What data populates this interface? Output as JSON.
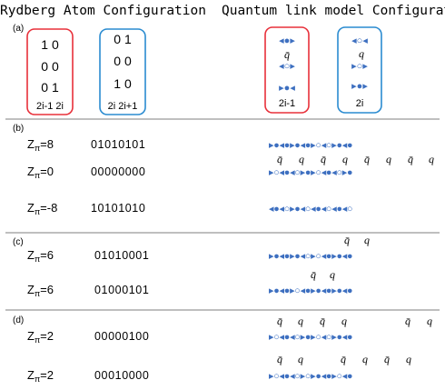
{
  "headers": {
    "rydberg": "Rydberg Atom Configuration",
    "qlm": "Quantum link model Configuration"
  },
  "colors": {
    "red_box": "#e8303a",
    "blue_box": "#2a8bd0",
    "marker": "#3d6fc0",
    "rule": "#555555"
  },
  "panel_a": {
    "label": "(a)",
    "red_box": {
      "rows": [
        "1 0",
        "0 0",
        "0 1"
      ],
      "caption": "2i-1 2i"
    },
    "blue_box": {
      "rows": [
        "0 1",
        "0 0",
        "1 0"
      ],
      "caption": "2i 2i+1"
    },
    "qlm_red": {
      "rows": [
        "◂●▸",
        "◂○▸",
        "▸●◂"
      ],
      "charge": "q̄",
      "caption": "2i-1"
    },
    "qlm_blue": {
      "rows": [
        "◂○◂",
        "▸○▸",
        "▸●▸"
      ],
      "charge": "q",
      "caption": "2i"
    }
  },
  "panel_b": {
    "label": "(b)",
    "rows": [
      {
        "z": "Z",
        "sub": "π",
        "val": "=8",
        "config": "01010101",
        "glyphs": "▸●◂●▸●◂●▸○◂○▸●◂●",
        "charges": []
      },
      {
        "z": "Z",
        "sub": "π",
        "val": "=0",
        "config": "00000000",
        "glyphs": "▸○◂●◂○▸●▸○◂●◂○▸●",
        "charges": [
          "q̄",
          "q",
          "q̄",
          "q",
          "q̄",
          "q",
          "q̄",
          "q"
        ]
      },
      {
        "z": "Z",
        "sub": "π",
        "val": "=-8",
        "config": "10101010",
        "glyphs": "◂●◂○▸●◂○◂●◂○◂●◂○",
        "charges": []
      }
    ]
  },
  "panel_c": {
    "label": "(c)",
    "rows": [
      {
        "z": "Z",
        "sub": "π",
        "val": "=6",
        "config": "01010001",
        "glyphs": "▸●◂●▸●◂○▸○◂●▸●◂●",
        "charges": [
          "q̄",
          "q"
        ]
      },
      {
        "z": "Z",
        "sub": "π",
        "val": "=6",
        "config": "01000101",
        "glyphs": "▸●◂●▸○◂●▸●◂●▸●◂●",
        "charges": [
          "q̄",
          "q"
        ]
      }
    ]
  },
  "panel_d": {
    "label": "(d)",
    "rows": [
      {
        "z": "Z",
        "sub": "π",
        "val": "=2",
        "config": "00000100",
        "glyphs": "▸○◂●◂○▸●▸○◂○▸●◂●",
        "charges": [
          "q̄",
          "q",
          "q̄",
          "q",
          "q̄",
          "q"
        ]
      },
      {
        "z": "Z",
        "sub": "π",
        "val": "=2",
        "config": "00010000",
        "glyphs": "▸○◂●◂○▸○▸●◂●▸○◂●",
        "charges": [
          "q̄",
          "q",
          "q̄",
          "q",
          "q̄",
          "q"
        ]
      }
    ]
  }
}
